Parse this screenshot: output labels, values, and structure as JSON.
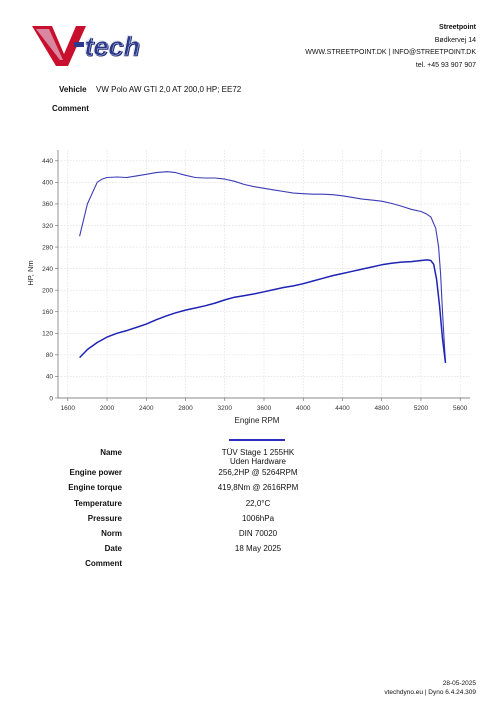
{
  "header": {
    "logo_text": "V-tech",
    "company": "Streetpoint",
    "address": "Bødkervej 14",
    "contact": "WWW.STREETPOINT.DK | INFO@STREETPOINT.DK",
    "phone": "tel. +45 93 907 907"
  },
  "vehicle": {
    "label": "Vehicle",
    "value": "VW Polo AW GTI 2,0 AT 200,0 HP; EE72"
  },
  "comment": {
    "label": "Comment"
  },
  "chart_data": {
    "type": "line",
    "xlabel": "Engine RPM",
    "ylabel": "HP, Nm",
    "xlim": [
      1500,
      5700
    ],
    "ylim": [
      0,
      460
    ],
    "x_ticks": [
      1600,
      2000,
      2400,
      2800,
      3200,
      3600,
      4000,
      4400,
      4800,
      5200,
      5600
    ],
    "y_ticks": [
      0,
      40,
      80,
      120,
      160,
      200,
      240,
      280,
      320,
      360,
      400,
      440
    ],
    "grid": true,
    "series": [
      {
        "name": "torque",
        "color": "#3b3bb8",
        "x": [
          1720,
          1800,
          1900,
          1950,
          2000,
          2100,
          2200,
          2300,
          2400,
          2500,
          2616,
          2700,
          2800,
          2900,
          3000,
          3100,
          3200,
          3300,
          3400,
          3500,
          3600,
          3700,
          3800,
          3900,
          4000,
          4100,
          4200,
          4300,
          4400,
          4500,
          4600,
          4700,
          4800,
          4900,
          5000,
          5100,
          5200,
          5250,
          5300,
          5350,
          5380,
          5400,
          5420,
          5440,
          5450
        ],
        "values": [
          300,
          360,
          400,
          406,
          409,
          410,
          409,
          412,
          415,
          418,
          419.8,
          418,
          413,
          409,
          408,
          408,
          406,
          402,
          396,
          392,
          389,
          386,
          383,
          380,
          379,
          378,
          378,
          377,
          375,
          372,
          369,
          367,
          365,
          361,
          356,
          350,
          346,
          342,
          336,
          315,
          280,
          230,
          160,
          95,
          67
        ]
      },
      {
        "name": "TÜV Stage 1 255HK",
        "color": "#1e23b4",
        "x": [
          1720,
          1800,
          1900,
          2000,
          2100,
          2200,
          2300,
          2400,
          2500,
          2600,
          2700,
          2800,
          2900,
          3000,
          3100,
          3200,
          3300,
          3400,
          3500,
          3600,
          3700,
          3800,
          3900,
          4000,
          4100,
          4200,
          4300,
          4400,
          4500,
          4600,
          4700,
          4800,
          4900,
          5000,
          5100,
          5200,
          5264,
          5300,
          5330,
          5360,
          5390,
          5420,
          5450
        ],
        "values": [
          75,
          90,
          103,
          113,
          120,
          125,
          131,
          137,
          145,
          152,
          158,
          163,
          167,
          171,
          176,
          182,
          187,
          190,
          193,
          197,
          201,
          205,
          208,
          212,
          217,
          222,
          227,
          231,
          235,
          239,
          243,
          247,
          250,
          252,
          253,
          255,
          256.2,
          255,
          248,
          220,
          170,
          110,
          65
        ]
      }
    ]
  },
  "legend": {
    "line1": "TÜV Stage 1 255HK",
    "line2": "Uden Hardware"
  },
  "info": [
    {
      "label": "Name",
      "value": ""
    },
    {
      "label": "Engine power",
      "value": "256,2HP @ 5264RPM"
    },
    {
      "label": "Engine torque",
      "value": "419,8Nm @ 2616RPM"
    },
    {
      "label": "Temperature",
      "value": "22,0°C"
    },
    {
      "label": "Pressure",
      "value": "1006hPa"
    },
    {
      "label": "Norm",
      "value": "DIN 70020"
    },
    {
      "label": "Date",
      "value": "18 May 2025"
    },
    {
      "label": "Comment",
      "value": ""
    }
  ],
  "footer": {
    "date": "28-05-2025",
    "version": "vtechdyno.eu | Dyno 6.4.24.309"
  }
}
